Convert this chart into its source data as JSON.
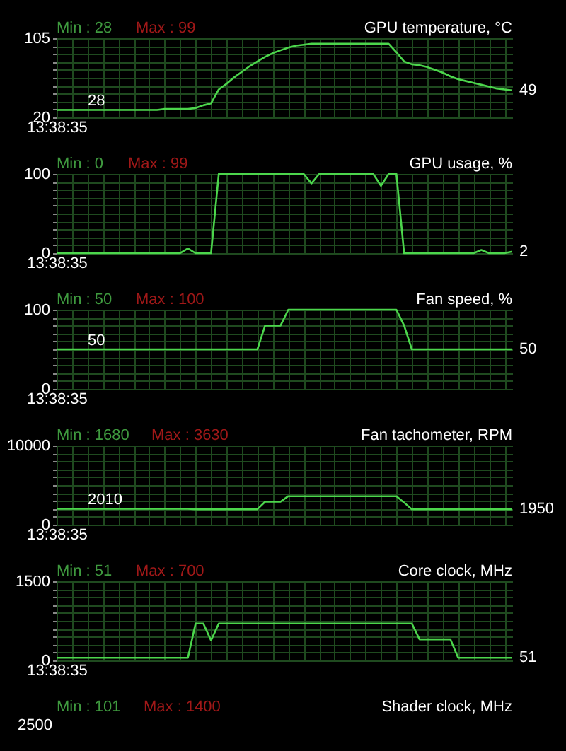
{
  "chart_data": [
    {
      "type": "line",
      "title": "GPU temperature, °C",
      "annotations": [
        "Min : 28",
        "Max : 99",
        "28",
        "49"
      ],
      "grid": true,
      "ylim": [
        20,
        105
      ],
      "yticks": [
        20,
        {
          "value": 28.5,
          "label": null
        },
        {
          "value": 37,
          "label": null
        },
        {
          "value": 45.5,
          "label": null
        },
        {
          "value": 54,
          "label": null
        },
        {
          "value": 62.5,
          "label": null
        },
        {
          "value": 71,
          "label": null
        },
        {
          "value": 79.5,
          "label": null
        },
        {
          "value": 88,
          "label": null
        },
        {
          "value": 96.5,
          "label": null
        },
        105
      ],
      "categories": [
        "13:38:35",
        null,
        null,
        null,
        null,
        null,
        null,
        null,
        null,
        null,
        null,
        null,
        null,
        null,
        null,
        null,
        null,
        null,
        null,
        null,
        null,
        null,
        null,
        null,
        null,
        null,
        null,
        null,
        null,
        null,
        null,
        null,
        null,
        null,
        null,
        null,
        null,
        null,
        null,
        null,
        null,
        null,
        null,
        null,
        null,
        null,
        null,
        null,
        null,
        null,
        null,
        null,
        null,
        null,
        null,
        null,
        null,
        null,
        null,
        null
      ],
      "series": [
        {
          "color": "#4cd64c",
          "values": [
            28,
            28,
            28,
            28,
            28,
            28,
            28,
            28,
            28,
            28,
            28,
            28,
            28,
            28,
            29,
            29,
            29,
            29,
            30,
            33,
            35,
            50,
            56,
            63,
            69,
            75,
            80,
            85,
            89,
            92,
            95,
            97,
            98,
            99,
            99,
            99,
            99,
            99,
            99,
            99,
            99,
            99,
            99,
            99,
            90,
            80,
            77,
            76,
            74,
            71,
            68,
            64,
            61,
            59,
            57,
            55,
            53,
            51,
            50,
            49
          ]
        }
      ]
    },
    {
      "type": "line",
      "title": "GPU usage, %",
      "annotations": [
        "Min : 0",
        "Max : 99",
        "2"
      ],
      "grid": true,
      "ylim": [
        0,
        100
      ],
      "yticks": [
        0,
        {
          "value": 10,
          "label": null
        },
        {
          "value": 20,
          "label": null
        },
        {
          "value": 30,
          "label": null
        },
        {
          "value": 40,
          "label": null
        },
        {
          "value": 50,
          "label": null
        },
        {
          "value": 60,
          "label": null
        },
        {
          "value": 70,
          "label": null
        },
        {
          "value": 80,
          "label": null
        },
        {
          "value": 90,
          "label": null
        },
        100
      ],
      "categories": [
        "13:38:35",
        null,
        null,
        null,
        null,
        null,
        null,
        null,
        null,
        null,
        null,
        null,
        null,
        null,
        null,
        null,
        null,
        null,
        null,
        null,
        null,
        null,
        null,
        null,
        null,
        null,
        null,
        null,
        null,
        null,
        null,
        null,
        null,
        null,
        null,
        null,
        null,
        null,
        null,
        null,
        null,
        null,
        null,
        null,
        null,
        null,
        null,
        null,
        null,
        null,
        null,
        null,
        null,
        null,
        null,
        null,
        null,
        null,
        null,
        null
      ],
      "series": [
        {
          "color": "#4cd64c",
          "values": [
            0,
            0,
            0,
            0,
            0,
            0,
            0,
            0,
            0,
            0,
            0,
            0,
            0,
            0,
            0,
            0,
            0,
            6,
            0,
            0,
            0,
            100,
            100,
            100,
            100,
            100,
            100,
            100,
            100,
            100,
            100,
            100,
            100,
            88,
            100,
            100,
            100,
            100,
            100,
            100,
            100,
            100,
            85,
            100,
            100,
            0,
            0,
            0,
            0,
            0,
            0,
            0,
            0,
            0,
            0,
            4,
            0,
            0,
            0,
            2
          ]
        }
      ]
    },
    {
      "type": "line",
      "title": "Fan speed, %",
      "annotations": [
        "Min : 50",
        "Max : 100",
        "50",
        "50"
      ],
      "grid": true,
      "ylim": [
        0,
        100
      ],
      "yticks": [
        0,
        {
          "value": 10,
          "label": null
        },
        {
          "value": 20,
          "label": null
        },
        {
          "value": 30,
          "label": null
        },
        {
          "value": 40,
          "label": null
        },
        {
          "value": 50,
          "label": null
        },
        {
          "value": 60,
          "label": null
        },
        {
          "value": 70,
          "label": null
        },
        {
          "value": 80,
          "label": null
        },
        {
          "value": 90,
          "label": null
        },
        100
      ],
      "categories": [
        "13:38:35",
        null,
        null,
        null,
        null,
        null,
        null,
        null,
        null,
        null,
        null,
        null,
        null,
        null,
        null,
        null,
        null,
        null,
        null,
        null,
        null,
        null,
        null,
        null,
        null,
        null,
        null,
        null,
        null,
        null,
        null,
        null,
        null,
        null,
        null,
        null,
        null,
        null,
        null,
        null,
        null,
        null,
        null,
        null,
        null,
        null,
        null,
        null,
        null,
        null,
        null,
        null,
        null,
        null,
        null,
        null,
        null,
        null,
        null,
        null
      ],
      "series": [
        {
          "color": "#4cd64c",
          "values": [
            50,
            50,
            50,
            50,
            50,
            50,
            50,
            50,
            50,
            50,
            50,
            50,
            50,
            50,
            50,
            50,
            50,
            50,
            50,
            50,
            50,
            50,
            50,
            50,
            50,
            50,
            50,
            80,
            80,
            80,
            100,
            100,
            100,
            100,
            100,
            100,
            100,
            100,
            100,
            100,
            100,
            100,
            100,
            100,
            100,
            80,
            50,
            50,
            50,
            50,
            50,
            50,
            50,
            50,
            50,
            50,
            50,
            50,
            50,
            50
          ]
        }
      ]
    },
    {
      "type": "line",
      "title": "Fan tachometer, RPM",
      "annotations": [
        "Min : 1680",
        "Max : 3630",
        "2010",
        "1950"
      ],
      "grid": true,
      "ylim": [
        0,
        10000
      ],
      "yticks": [
        0,
        {
          "value": 1000,
          "label": null
        },
        {
          "value": 2000,
          "label": null
        },
        {
          "value": 3000,
          "label": null
        },
        {
          "value": 4000,
          "label": null
        },
        {
          "value": 5000,
          "label": null
        },
        {
          "value": 6000,
          "label": null
        },
        {
          "value": 7000,
          "label": null
        },
        {
          "value": 8000,
          "label": null
        },
        {
          "value": 9000,
          "label": null
        },
        10000
      ],
      "categories": [
        "13:38:35",
        null,
        null,
        null,
        null,
        null,
        null,
        null,
        null,
        null,
        null,
        null,
        null,
        null,
        null,
        null,
        null,
        null,
        null,
        null,
        null,
        null,
        null,
        null,
        null,
        null,
        null,
        null,
        null,
        null,
        null,
        null,
        null,
        null,
        null,
        null,
        null,
        null,
        null,
        null,
        null,
        null,
        null,
        null,
        null,
        null,
        null,
        null,
        null,
        null,
        null,
        null,
        null,
        null,
        null,
        null,
        null,
        null,
        null,
        null
      ],
      "series": [
        {
          "color": "#4cd64c",
          "values": [
            2010,
            2010,
            2010,
            2010,
            2010,
            2010,
            2010,
            2010,
            2010,
            2010,
            2010,
            2010,
            2010,
            2010,
            2010,
            2010,
            2010,
            2010,
            1950,
            1950,
            1950,
            1950,
            1950,
            1950,
            1950,
            1950,
            1950,
            2900,
            2900,
            2900,
            3600,
            3600,
            3600,
            3600,
            3600,
            3600,
            3600,
            3600,
            3600,
            3600,
            3600,
            3600,
            3600,
            3600,
            3600,
            2800,
            1950,
            1950,
            1950,
            1950,
            1950,
            1950,
            1950,
            1950,
            1950,
            1950,
            1950,
            1950,
            1950,
            1950
          ]
        }
      ]
    },
    {
      "type": "line",
      "title": "Core clock, MHz",
      "annotations": [
        "Min : 51",
        "Max : 700",
        "51"
      ],
      "grid": true,
      "ylim": [
        0,
        1500
      ],
      "yticks": [
        0,
        {
          "value": 150,
          "label": null
        },
        {
          "value": 300,
          "label": null
        },
        {
          "value": 450,
          "label": null
        },
        {
          "value": 600,
          "label": null
        },
        {
          "value": 750,
          "label": null
        },
        {
          "value": 900,
          "label": null
        },
        {
          "value": 1050,
          "label": null
        },
        {
          "value": 1200,
          "label": null
        },
        {
          "value": 1350,
          "label": null
        },
        1500
      ],
      "categories": [
        "13:38:35",
        null,
        null,
        null,
        null,
        null,
        null,
        null,
        null,
        null,
        null,
        null,
        null,
        null,
        null,
        null,
        null,
        null,
        null,
        null,
        null,
        null,
        null,
        null,
        null,
        null,
        null,
        null,
        null,
        null,
        null,
        null,
        null,
        null,
        null,
        null,
        null,
        null,
        null,
        null,
        null,
        null,
        null,
        null,
        null,
        null,
        null,
        null,
        null,
        null,
        null,
        null,
        null,
        null,
        null,
        null,
        null,
        null,
        null,
        null
      ],
      "series": [
        {
          "color": "#4cd64c",
          "values": [
            51,
            51,
            51,
            51,
            51,
            51,
            51,
            51,
            51,
            51,
            51,
            51,
            51,
            51,
            51,
            51,
            51,
            51,
            700,
            700,
            380,
            700,
            700,
            700,
            700,
            700,
            700,
            700,
            700,
            700,
            700,
            700,
            700,
            700,
            700,
            700,
            700,
            700,
            700,
            700,
            700,
            700,
            700,
            700,
            700,
            700,
            700,
            400,
            400,
            400,
            400,
            400,
            51,
            51,
            51,
            51,
            51,
            51,
            51,
            51
          ]
        }
      ]
    },
    {
      "type": "other",
      "title": "Shader clock, MHz",
      "annotations": [
        "Min : 101",
        "Max : 1400",
        "2500"
      ]
    }
  ]
}
